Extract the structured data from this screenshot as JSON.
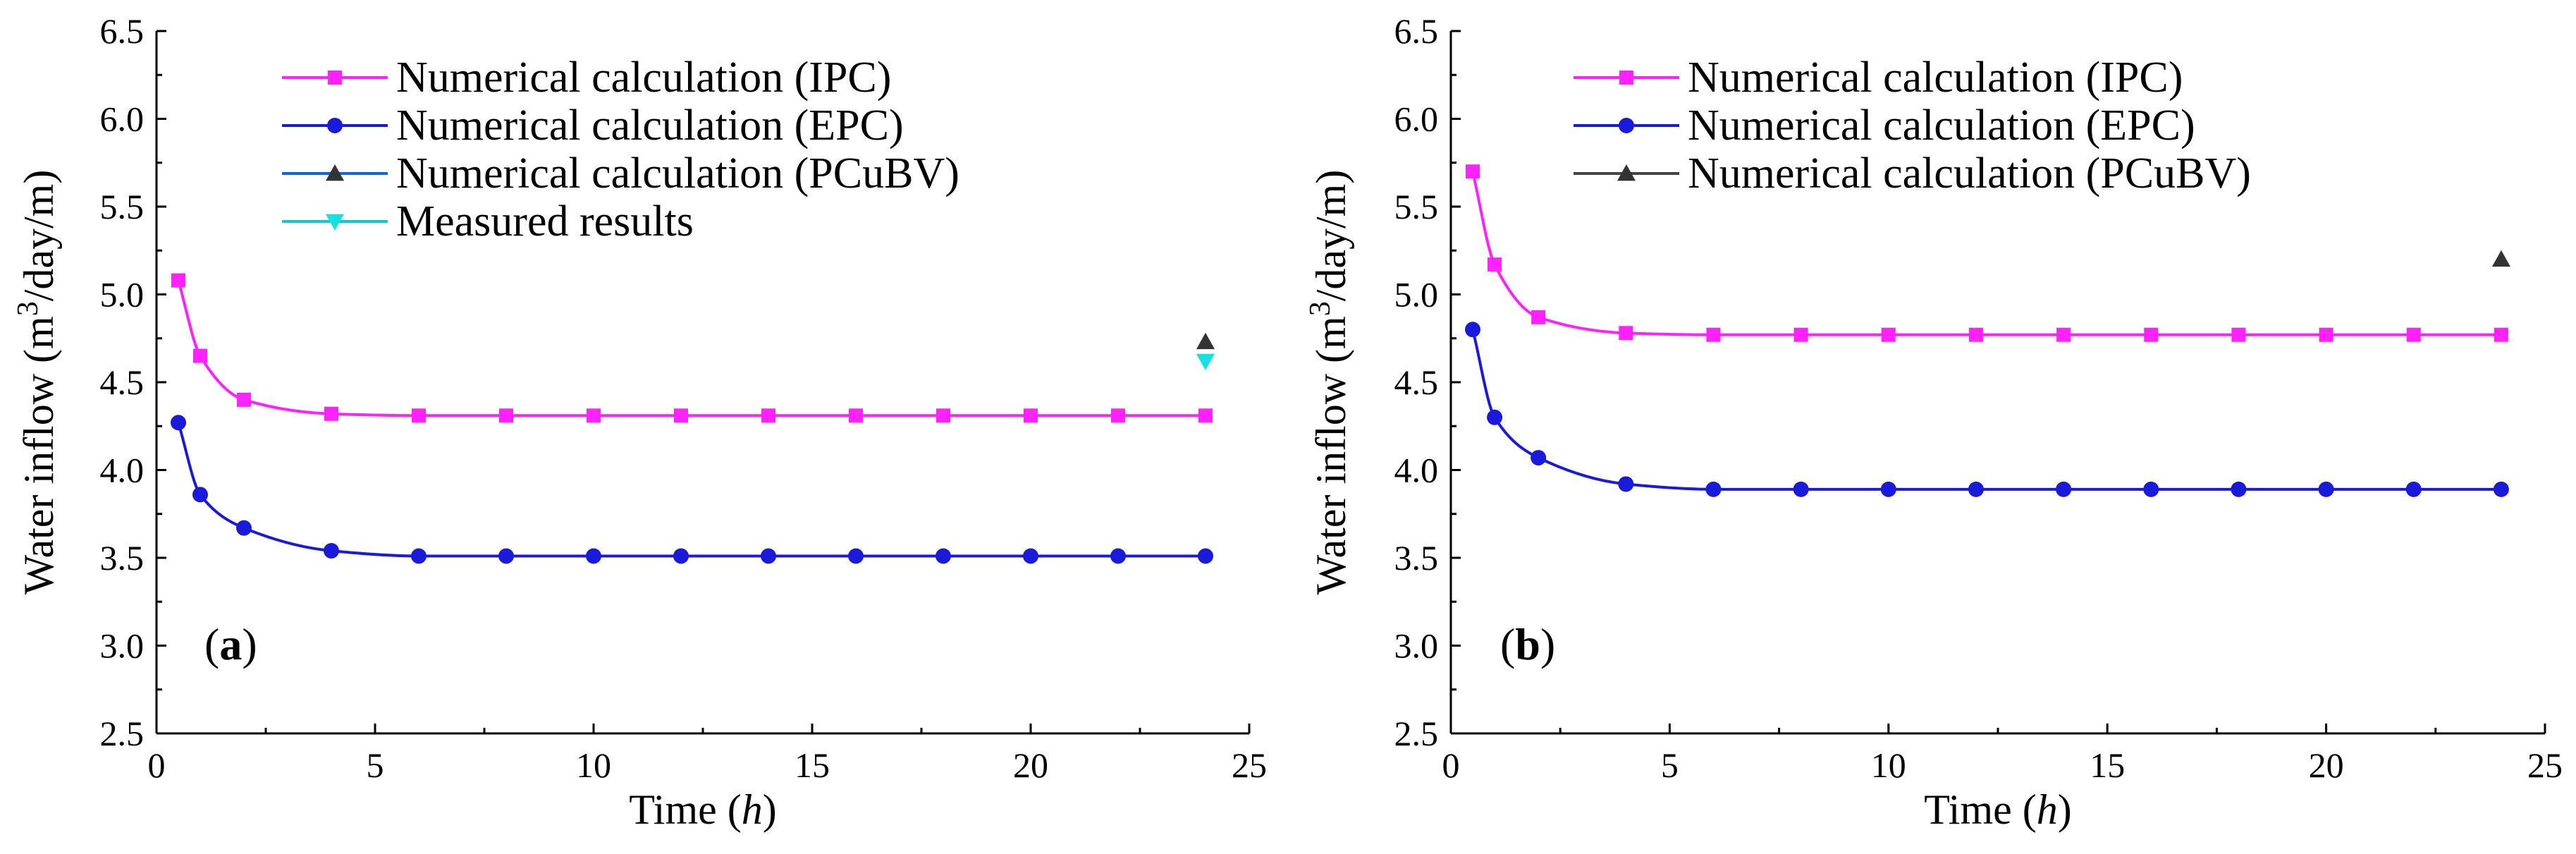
{
  "chart_data": [
    {
      "type": "line",
      "panel_label": "a",
      "xlabel": "Time",
      "xlabel_unit": "h",
      "ylabel_prefix": "Water inflow (m",
      "ylabel_sup": "3",
      "ylabel_suffix": "/day/m)",
      "xlim": [
        0,
        25
      ],
      "ylim": [
        2.5,
        6.5
      ],
      "xticks": [
        0,
        5,
        10,
        15,
        20,
        25
      ],
      "yticks": [
        2.5,
        3.0,
        3.5,
        4.0,
        4.5,
        5.0,
        5.5,
        6.0,
        6.5
      ],
      "xtick_labels": [
        "0",
        "5",
        "10",
        "15",
        "20",
        "25"
      ],
      "ytick_labels": [
        "2.5",
        "3.0",
        "3.5",
        "4.0",
        "4.5",
        "5.0",
        "5.5",
        "6.0",
        "6.5"
      ],
      "legend_position": "top-left",
      "series": [
        {
          "name": "Numerical calculation (IPC)",
          "color": "#ff22ff",
          "marker": "square",
          "line": true,
          "x": [
            0.5,
            1,
            2,
            4,
            6,
            8,
            10,
            12,
            14,
            16,
            18,
            20,
            22,
            24
          ],
          "y": [
            5.08,
            4.65,
            4.4,
            4.32,
            4.31,
            4.31,
            4.31,
            4.31,
            4.31,
            4.31,
            4.31,
            4.31,
            4.31,
            4.31
          ]
        },
        {
          "name": "Numerical calculation (EPC)",
          "color": "#1a1adb",
          "marker": "circle",
          "line": true,
          "x": [
            0.5,
            1,
            2,
            4,
            6,
            8,
            10,
            12,
            14,
            16,
            18,
            20,
            22,
            24
          ],
          "y": [
            4.27,
            3.86,
            3.67,
            3.54,
            3.51,
            3.51,
            3.51,
            3.51,
            3.51,
            3.51,
            3.51,
            3.51,
            3.51,
            3.51
          ]
        },
        {
          "name": "Numerical calculation (PCuBV)",
          "color": "#1565d8",
          "marker_color": "#333333",
          "marker": "triangle-up",
          "line": false,
          "x": [
            24
          ],
          "y": [
            4.73
          ]
        },
        {
          "name": "Measured results",
          "color": "#18c6c6",
          "marker_color": "#18e0e0",
          "marker": "triangle-down",
          "line": false,
          "x": [
            24
          ],
          "y": [
            4.62
          ]
        }
      ]
    },
    {
      "type": "line",
      "panel_label": "b",
      "xlabel": "Time",
      "xlabel_unit": "h",
      "ylabel_prefix": "Water inflow (m",
      "ylabel_sup": "3",
      "ylabel_suffix": "/day/m)",
      "xlim": [
        0,
        25
      ],
      "ylim": [
        2.5,
        6.5
      ],
      "xticks": [
        0,
        5,
        10,
        15,
        20,
        25
      ],
      "yticks": [
        2.5,
        3.0,
        3.5,
        4.0,
        4.5,
        5.0,
        5.5,
        6.0,
        6.5
      ],
      "xtick_labels": [
        "0",
        "5",
        "10",
        "15",
        "20",
        "25"
      ],
      "ytick_labels": [
        "2.5",
        "3.0",
        "3.5",
        "4.0",
        "4.5",
        "5.0",
        "5.5",
        "6.0",
        "6.5"
      ],
      "legend_position": "top-left",
      "series": [
        {
          "name": "Numerical calculation (IPC)",
          "color": "#ff22ff",
          "marker": "square",
          "line": true,
          "x": [
            0.5,
            1,
            2,
            4,
            6,
            8,
            10,
            12,
            14,
            16,
            18,
            20,
            22,
            24
          ],
          "y": [
            5.7,
            5.17,
            4.87,
            4.78,
            4.77,
            4.77,
            4.77,
            4.77,
            4.77,
            4.77,
            4.77,
            4.77,
            4.77,
            4.77
          ]
        },
        {
          "name": "Numerical calculation (EPC)",
          "color": "#1a1adb",
          "marker": "circle",
          "line": true,
          "x": [
            0.5,
            1,
            2,
            4,
            6,
            8,
            10,
            12,
            14,
            16,
            18,
            20,
            22,
            24
          ],
          "y": [
            4.8,
            4.3,
            4.07,
            3.92,
            3.89,
            3.89,
            3.89,
            3.89,
            3.89,
            3.89,
            3.89,
            3.89,
            3.89,
            3.89
          ]
        },
        {
          "name": "Numerical calculation (PCuBV)",
          "color": "#444444",
          "marker_color": "#333333",
          "marker": "triangle-up",
          "line": false,
          "x": [
            24
          ],
          "y": [
            5.2
          ]
        }
      ]
    }
  ]
}
